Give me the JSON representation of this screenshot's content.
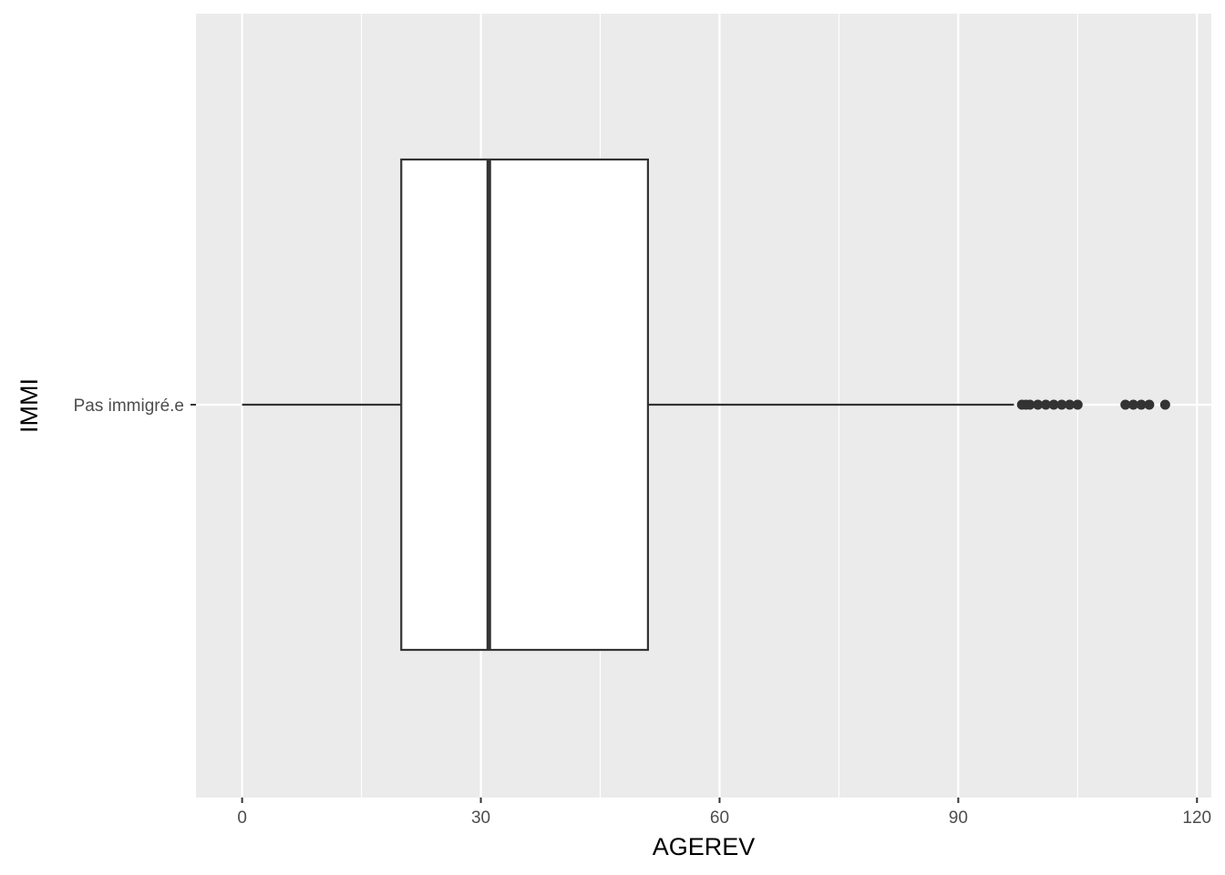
{
  "chart_data": {
    "type": "boxplot",
    "orientation": "horizontal",
    "xlabel": "AGEREV",
    "ylabel": "IMMI",
    "xlim": [
      -5.8,
      121.8
    ],
    "x_ticks": [
      0,
      30,
      60,
      90,
      120
    ],
    "x_minor_ticks": [
      15,
      45,
      75,
      105
    ],
    "grid": true,
    "categories": [
      "Pas immigré.e"
    ],
    "boxes": [
      {
        "category": "Pas immigré.e",
        "whisker_low": 0,
        "q1": 20,
        "median": 31,
        "q3": 51,
        "whisker_high": 97,
        "outliers": [
          98,
          98.5,
          99,
          100,
          101,
          102,
          103,
          104,
          105,
          111,
          112,
          113,
          114,
          116
        ]
      }
    ],
    "colors": {
      "panel_background": "#ebebeb",
      "grid": "#ffffff",
      "box_fill": "#ffffff",
      "box_stroke": "#333333",
      "tick_label": "#4d4d4d"
    }
  }
}
